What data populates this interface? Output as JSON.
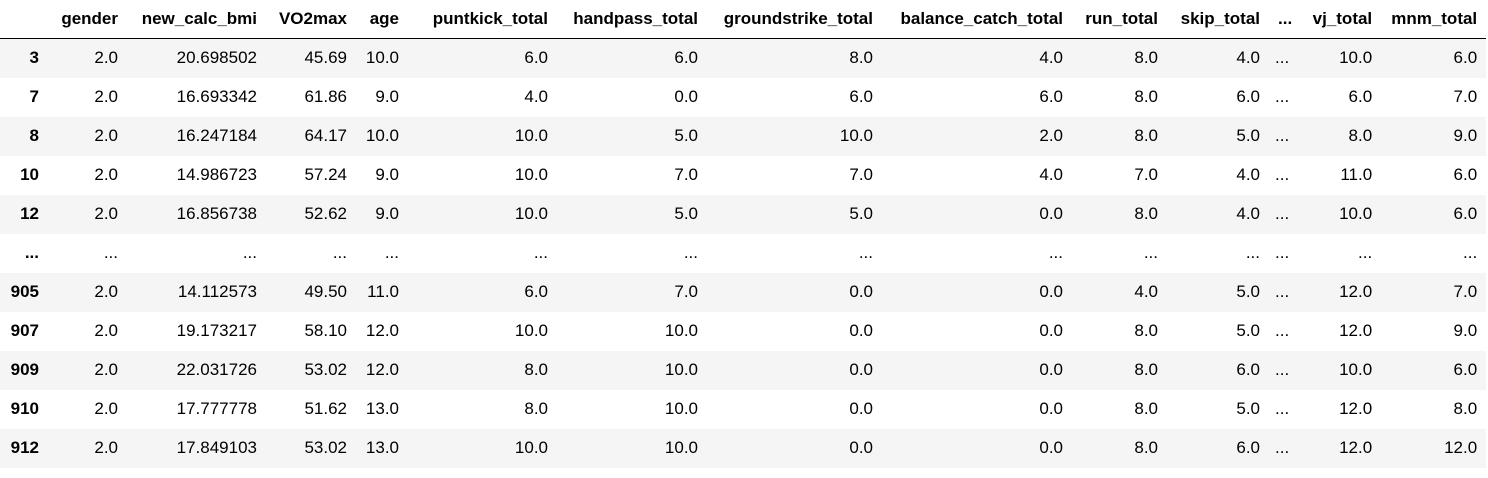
{
  "table": {
    "index_header": "",
    "columns": [
      "gender",
      "new_calc_bmi",
      "VO2max",
      "age",
      "puntkick_total",
      "handpass_total",
      "groundstrike_total",
      "balance_catch_total",
      "run_total",
      "skip_total",
      "...",
      "vj_total",
      "mnm_total"
    ],
    "rows": [
      {
        "index": "3",
        "cells": [
          "2.0",
          "20.698502",
          "45.69",
          "10.0",
          "6.0",
          "6.0",
          "8.0",
          "4.0",
          "8.0",
          "4.0",
          "...",
          "10.0",
          "6.0"
        ]
      },
      {
        "index": "7",
        "cells": [
          "2.0",
          "16.693342",
          "61.86",
          "9.0",
          "4.0",
          "0.0",
          "6.0",
          "6.0",
          "8.0",
          "6.0",
          "...",
          "6.0",
          "7.0"
        ]
      },
      {
        "index": "8",
        "cells": [
          "2.0",
          "16.247184",
          "64.17",
          "10.0",
          "10.0",
          "5.0",
          "10.0",
          "2.0",
          "8.0",
          "5.0",
          "...",
          "8.0",
          "9.0"
        ]
      },
      {
        "index": "10",
        "cells": [
          "2.0",
          "14.986723",
          "57.24",
          "9.0",
          "10.0",
          "7.0",
          "7.0",
          "4.0",
          "7.0",
          "4.0",
          "...",
          "11.0",
          "6.0"
        ]
      },
      {
        "index": "12",
        "cells": [
          "2.0",
          "16.856738",
          "52.62",
          "9.0",
          "10.0",
          "5.0",
          "5.0",
          "0.0",
          "8.0",
          "4.0",
          "...",
          "10.0",
          "6.0"
        ]
      },
      {
        "index": "...",
        "cells": [
          "...",
          "...",
          "...",
          "...",
          "...",
          "...",
          "...",
          "...",
          "...",
          "...",
          "...",
          "...",
          "..."
        ]
      },
      {
        "index": "905",
        "cells": [
          "2.0",
          "14.112573",
          "49.50",
          "11.0",
          "6.0",
          "7.0",
          "0.0",
          "0.0",
          "4.0",
          "5.0",
          "...",
          "12.0",
          "7.0"
        ]
      },
      {
        "index": "907",
        "cells": [
          "2.0",
          "19.173217",
          "58.10",
          "12.0",
          "10.0",
          "10.0",
          "0.0",
          "0.0",
          "8.0",
          "5.0",
          "...",
          "12.0",
          "9.0"
        ]
      },
      {
        "index": "909",
        "cells": [
          "2.0",
          "22.031726",
          "53.02",
          "12.0",
          "8.0",
          "10.0",
          "0.0",
          "0.0",
          "8.0",
          "6.0",
          "...",
          "10.0",
          "6.0"
        ]
      },
      {
        "index": "910",
        "cells": [
          "2.0",
          "17.777778",
          "51.62",
          "13.0",
          "8.0",
          "10.0",
          "0.0",
          "0.0",
          "8.0",
          "5.0",
          "...",
          "12.0",
          "8.0"
        ]
      },
      {
        "index": "912",
        "cells": [
          "2.0",
          "17.849103",
          "53.02",
          "13.0",
          "10.0",
          "10.0",
          "0.0",
          "0.0",
          "8.0",
          "6.0",
          "...",
          "12.0",
          "12.0"
        ]
      }
    ]
  }
}
